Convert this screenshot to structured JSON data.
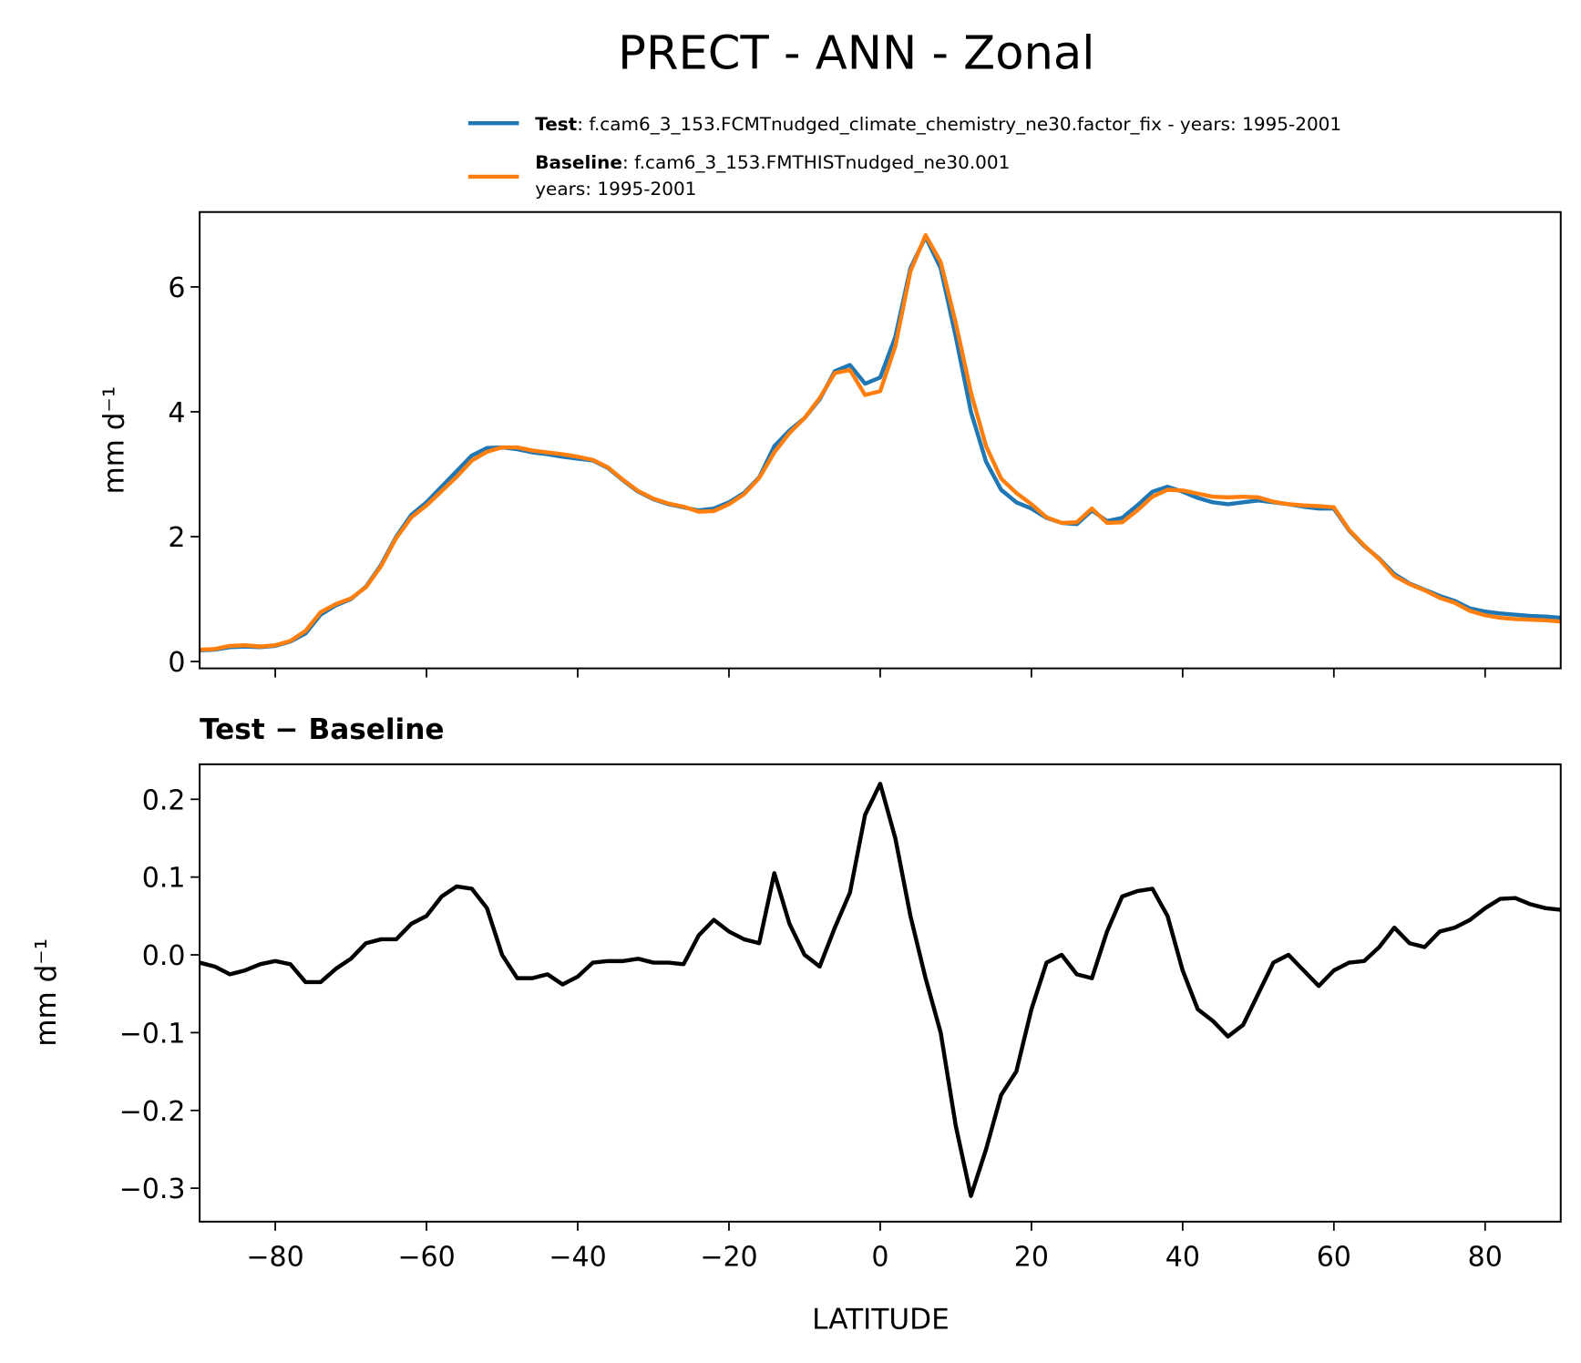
{
  "title": "PRECT - ANN - Zonal",
  "chart_data": [
    {
      "type": "line",
      "ylabel": "mm d⁻¹",
      "x": [
        -90,
        -88,
        -86,
        -84,
        -82,
        -80,
        -78,
        -76,
        -74,
        -72,
        -70,
        -68,
        -66,
        -64,
        -62,
        -60,
        -58,
        -56,
        -54,
        -52,
        -50,
        -48,
        -46,
        -44,
        -42,
        -40,
        -38,
        -36,
        -34,
        -32,
        -30,
        -28,
        -26,
        -24,
        -22,
        -20,
        -18,
        -16,
        -14,
        -12,
        -10,
        -8,
        -6,
        -4,
        -2,
        0,
        2,
        4,
        6,
        8,
        10,
        12,
        14,
        16,
        18,
        20,
        22,
        24,
        26,
        28,
        30,
        32,
        34,
        36,
        38,
        40,
        42,
        44,
        46,
        48,
        50,
        52,
        54,
        56,
        58,
        60,
        62,
        64,
        66,
        68,
        70,
        72,
        74,
        76,
        78,
        80,
        82,
        84,
        86,
        88,
        90
      ],
      "series": [
        {
          "name": "Test",
          "label": ": f.cam6_3_153.FCMTnudged_climate_chemistry_ne30.factor_fix - years: 1995-2001",
          "color": "#1f77b4",
          "values": [
            0.18,
            0.19,
            0.23,
            0.24,
            0.23,
            0.25,
            0.32,
            0.45,
            0.75,
            0.9,
            1.0,
            1.2,
            1.55,
            2.0,
            2.35,
            2.55,
            2.8,
            3.05,
            3.3,
            3.42,
            3.43,
            3.4,
            3.35,
            3.32,
            3.28,
            3.25,
            3.22,
            3.1,
            2.9,
            2.72,
            2.6,
            2.52,
            2.47,
            2.42,
            2.45,
            2.55,
            2.7,
            2.95,
            3.45,
            3.7,
            3.9,
            4.2,
            4.65,
            4.75,
            4.45,
            4.55,
            5.2,
            6.3,
            6.8,
            6.3,
            5.2,
            4.0,
            3.2,
            2.75,
            2.55,
            2.45,
            2.3,
            2.22,
            2.2,
            2.42,
            2.25,
            2.3,
            2.5,
            2.72,
            2.8,
            2.72,
            2.62,
            2.55,
            2.52,
            2.55,
            2.58,
            2.55,
            2.52,
            2.48,
            2.45,
            2.45,
            2.1,
            1.85,
            1.65,
            1.4,
            1.25,
            1.15,
            1.05,
            0.97,
            0.85,
            0.8,
            0.77,
            0.75,
            0.73,
            0.72,
            0.7
          ]
        },
        {
          "name": "Baseline",
          "label_lines": [
            ": f.cam6_3_153.FMTHISTnudged_ne30.001",
            "years: 1995-2001"
          ],
          "color": "#ff7f0e",
          "values": [
            0.19,
            0.2,
            0.25,
            0.26,
            0.24,
            0.26,
            0.33,
            0.49,
            0.79,
            0.92,
            1.01,
            1.19,
            1.53,
            1.98,
            2.31,
            2.5,
            2.73,
            2.96,
            3.22,
            3.36,
            3.43,
            3.43,
            3.38,
            3.35,
            3.32,
            3.28,
            3.23,
            3.11,
            2.91,
            2.73,
            2.61,
            2.53,
            2.48,
            2.4,
            2.41,
            2.52,
            2.68,
            2.94,
            3.35,
            3.66,
            3.9,
            4.22,
            4.62,
            4.67,
            4.27,
            4.33,
            5.05,
            6.25,
            6.83,
            6.4,
            5.42,
            4.31,
            3.45,
            2.93,
            2.7,
            2.52,
            2.31,
            2.22,
            2.23,
            2.45,
            2.22,
            2.23,
            2.42,
            2.64,
            2.75,
            2.74,
            2.69,
            2.64,
            2.63,
            2.64,
            2.63,
            2.56,
            2.52,
            2.5,
            2.49,
            2.47,
            2.11,
            1.86,
            1.64,
            1.37,
            1.24,
            1.14,
            1.02,
            0.94,
            0.81,
            0.74,
            0.7,
            0.68,
            0.67,
            0.66,
            0.64
          ]
        }
      ],
      "xlim": [
        -90,
        90
      ],
      "ylim": [
        -0.11,
        7.2
      ],
      "yticks": [
        0,
        2,
        4,
        6
      ]
    },
    {
      "type": "line",
      "title": "Test − Baseline",
      "xlabel": "LATITUDE",
      "ylabel": "mm d⁻¹",
      "x": [
        -90,
        -88,
        -86,
        -84,
        -82,
        -80,
        -78,
        -76,
        -74,
        -72,
        -70,
        -68,
        -66,
        -64,
        -62,
        -60,
        -58,
        -56,
        -54,
        -52,
        -50,
        -48,
        -46,
        -44,
        -42,
        -40,
        -38,
        -36,
        -34,
        -32,
        -30,
        -28,
        -26,
        -24,
        -22,
        -20,
        -18,
        -16,
        -14,
        -12,
        -10,
        -8,
        -6,
        -4,
        -2,
        0,
        2,
        4,
        6,
        8,
        10,
        12,
        14,
        16,
        18,
        20,
        22,
        24,
        26,
        28,
        30,
        32,
        34,
        36,
        38,
        40,
        42,
        44,
        46,
        48,
        50,
        52,
        54,
        56,
        58,
        60,
        62,
        64,
        66,
        68,
        70,
        72,
        74,
        76,
        78,
        80,
        82,
        84,
        86,
        88,
        90
      ],
      "series": [
        {
          "color": "#000000",
          "values": [
            -0.01,
            -0.015,
            -0.025,
            -0.02,
            -0.012,
            -0.008,
            -0.012,
            -0.035,
            -0.035,
            -0.018,
            -0.005,
            0.015,
            0.02,
            0.02,
            0.04,
            0.05,
            0.075,
            0.088,
            0.085,
            0.06,
            0.0,
            -0.03,
            -0.03,
            -0.025,
            -0.038,
            -0.028,
            -0.01,
            -0.008,
            -0.008,
            -0.005,
            -0.01,
            -0.01,
            -0.012,
            0.025,
            0.045,
            0.03,
            0.02,
            0.015,
            0.105,
            0.04,
            0.0,
            -0.015,
            0.035,
            0.08,
            0.18,
            0.22,
            0.15,
            0.05,
            -0.03,
            -0.1,
            -0.22,
            -0.31,
            -0.25,
            -0.18,
            -0.15,
            -0.07,
            -0.01,
            0.0,
            -0.025,
            -0.03,
            0.03,
            0.075,
            0.082,
            0.085,
            0.05,
            -0.02,
            -0.07,
            -0.085,
            -0.105,
            -0.09,
            -0.05,
            -0.01,
            0.0,
            -0.02,
            -0.04,
            -0.02,
            -0.01,
            -0.008,
            0.01,
            0.035,
            0.015,
            0.01,
            0.03,
            0.035,
            0.045,
            0.06,
            0.072,
            0.073,
            0.065,
            0.06,
            0.058
          ]
        }
      ],
      "xlim": [
        -90,
        90
      ],
      "ylim": [
        -0.343,
        0.245
      ],
      "xticks": [
        {
          "value": -80,
          "label": "−80"
        },
        {
          "value": -60,
          "label": "−60"
        },
        {
          "value": -40,
          "label": "−40"
        },
        {
          "value": -20,
          "label": "−20"
        },
        0,
        20,
        40,
        60,
        80
      ],
      "yticks": [
        {
          "value": -0.3,
          "label": "−0.3"
        },
        {
          "value": -0.2,
          "label": "−0.2"
        },
        {
          "value": -0.1,
          "label": "−0.1"
        },
        {
          "value": 0,
          "label": "0.0"
        },
        0.1,
        0.2
      ]
    }
  ]
}
